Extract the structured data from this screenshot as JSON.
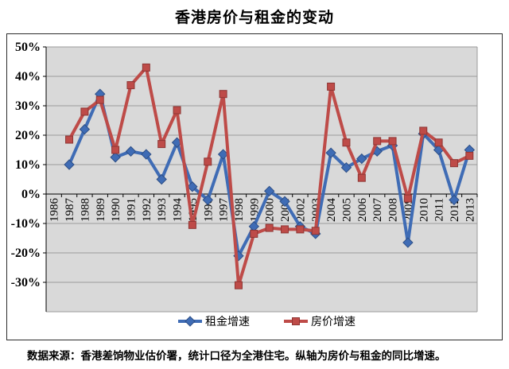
{
  "page_title": "香港房价与租金的变动",
  "footer": {
    "note": "数据来源：香港差饷物业估价署，统计口径为全港住宅。纵轴为房价与租金的同比增速。"
  },
  "chart_data": {
    "type": "line",
    "title": "香港房价与租金的变动",
    "xlabel": "",
    "ylabel": "",
    "categories": [
      "1986",
      "1987",
      "1988",
      "1989",
      "1990",
      "1991",
      "1992",
      "1993",
      "1994",
      "1995",
      "1996",
      "1997",
      "1998",
      "1999",
      "2000",
      "2001",
      "2002",
      "2003",
      "2004",
      "2005",
      "2006",
      "2007",
      "2008",
      "2009",
      "2010",
      "2011",
      "2012",
      "2013"
    ],
    "series": [
      {
        "name": "租金增速",
        "marker": "diamond",
        "color": "#3F6CB5",
        "edge_color": "#2E4F86",
        "values": [
          null,
          10,
          22,
          34,
          12.5,
          14.5,
          13.5,
          5,
          17.5,
          2.5,
          -2,
          13.5,
          -21,
          -11,
          1,
          -2.5,
          -11,
          -13.5,
          14,
          9,
          12,
          14.5,
          16.5,
          -16.5,
          20.5,
          15,
          -2,
          15
        ]
      },
      {
        "name": "房价增速",
        "marker": "square",
        "color": "#BE4B48",
        "edge_color": "#8E3634",
        "values": [
          null,
          18.5,
          28,
          32,
          15,
          37,
          43,
          17,
          28.5,
          -10.5,
          11,
          34,
          -31,
          -13.5,
          -11.5,
          -12,
          -12,
          -12.5,
          36.5,
          17.5,
          5.5,
          18,
          18,
          -1.5,
          21.5,
          17.5,
          10.5,
          13
        ]
      }
    ],
    "ylim": [
      -40,
      50
    ],
    "ytick_values": [
      50,
      40,
      30,
      20,
      10,
      0,
      -10,
      -20,
      -30
    ],
    "ytick_labels": [
      "50%",
      "40%",
      "30%",
      "20%",
      "10%",
      "0%",
      "-10%",
      "-20%",
      "-30%"
    ],
    "grid": "horizontal",
    "legend_position": "bottom",
    "style": {
      "plot_bg": "#D9D9D9",
      "grid_color": "#9B9B9B",
      "axis_color": "#000000"
    }
  }
}
